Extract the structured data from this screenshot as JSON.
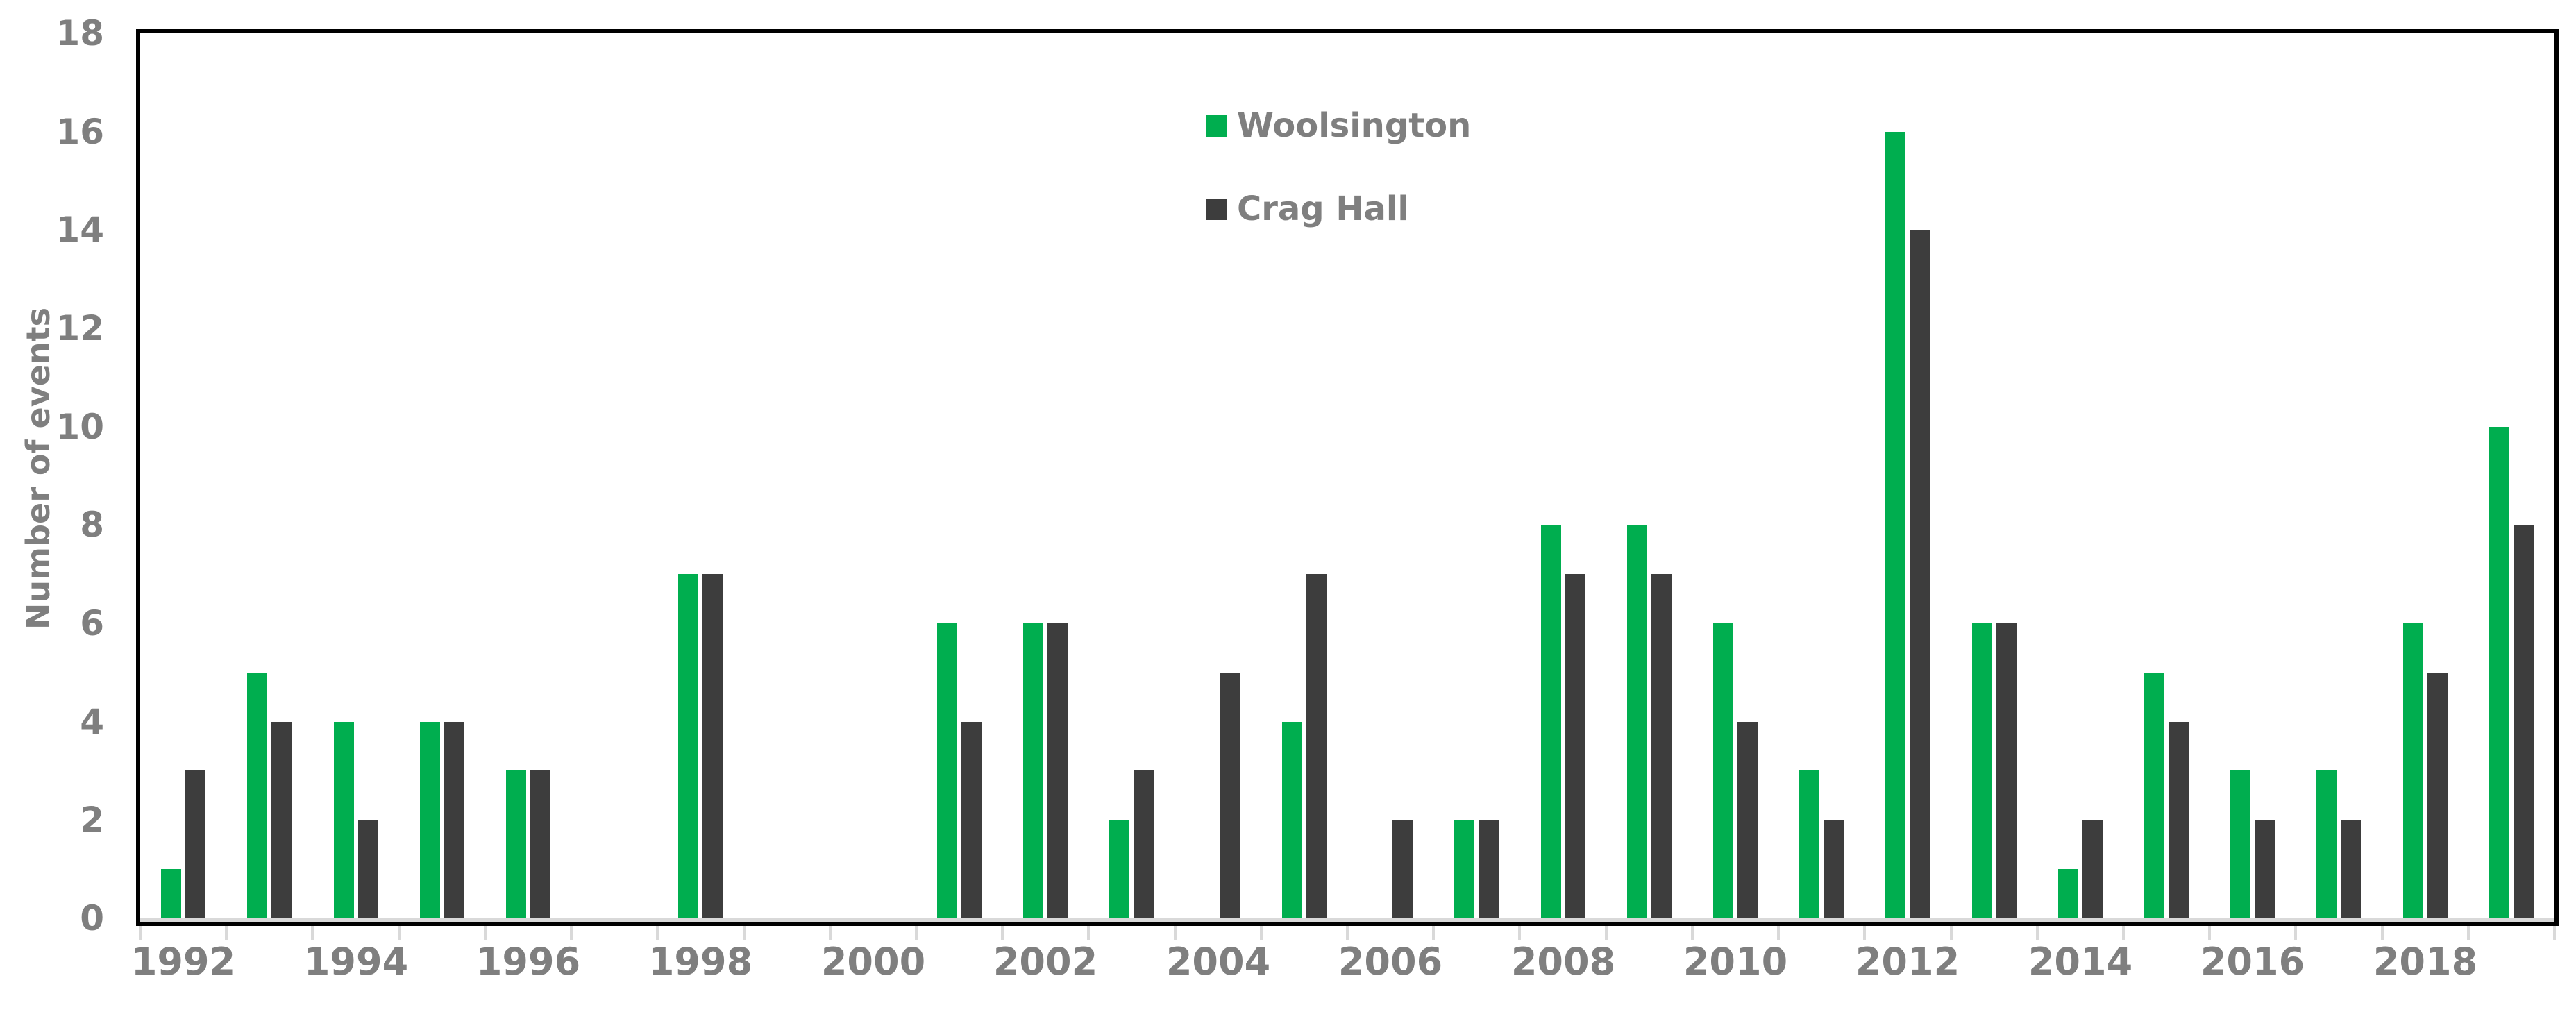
{
  "chart_data": {
    "type": "bar",
    "title": "",
    "xlabel": "",
    "ylabel": "Number of events",
    "ylim": [
      0,
      18
    ],
    "ytick_step": 2,
    "grid": false,
    "legend_position": "top-center-inside",
    "categories": [
      "1992",
      "1993",
      "1994",
      "1995",
      "1996",
      "1997",
      "1998",
      "1999",
      "2000",
      "2001",
      "2002",
      "2003",
      "2004",
      "2005",
      "2006",
      "2007",
      "2008",
      "2009",
      "2010",
      "2011",
      "2012",
      "2013",
      "2014",
      "2015",
      "2016",
      "2017",
      "2018",
      "2019"
    ],
    "xtick_labels": [
      "1992",
      "1994",
      "1996",
      "1998",
      "2000",
      "2002",
      "2004",
      "2006",
      "2008",
      "2010",
      "2012",
      "2014",
      "2016",
      "2018"
    ],
    "series": [
      {
        "name": "Woolsington",
        "color": "#00AE4F",
        "values": [
          1,
          5,
          4,
          4,
          3,
          0,
          7,
          0,
          0,
          6,
          6,
          2,
          0,
          4,
          0,
          2,
          8,
          8,
          6,
          3,
          16,
          6,
          1,
          5,
          3,
          3,
          6,
          10
        ]
      },
      {
        "name": "Crag Hall",
        "color": "#3D3D3D",
        "values": [
          3,
          4,
          2,
          4,
          3,
          0,
          7,
          0,
          0,
          4,
          6,
          3,
          5,
          7,
          2,
          2,
          7,
          7,
          4,
          2,
          14,
          6,
          2,
          4,
          2,
          2,
          5,
          8
        ]
      }
    ],
    "colors": {
      "plot_border": "#000000",
      "axis_line": "#D9D9D9",
      "tick_mark": "#D9D9D9",
      "label_text": "#7F7F7F"
    }
  }
}
